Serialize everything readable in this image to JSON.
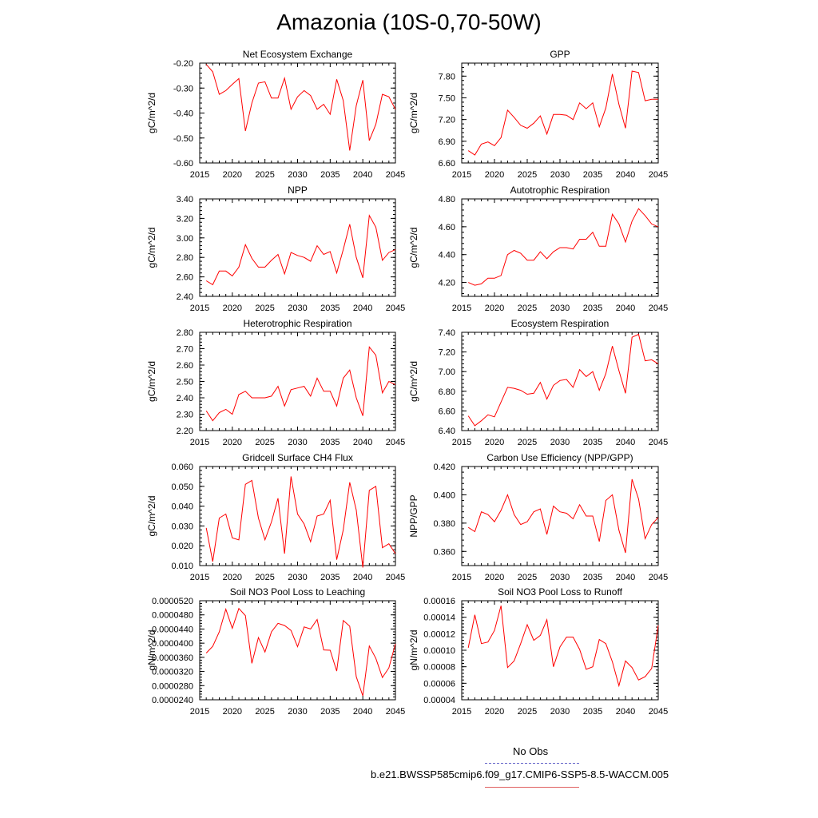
{
  "page_title": "Amazonia (10S-0,70-50W)",
  "legend": {
    "obs_label": "No Obs",
    "obs_color": "#6464c8",
    "model_label": "b.e21.BWSSP585cmip6.f09_g17.CMIP6-SSP5-8.5-WACCM.005",
    "model_color": "#e06060"
  },
  "chart_data": [
    {
      "type": "line",
      "title": "Net Ecosystem Exchange",
      "xlabel": "",
      "ylabel": "gC/m^2/d",
      "xlim": [
        2015,
        2045
      ],
      "ylim": [
        -0.6,
        -0.2
      ],
      "xticks": [
        2015,
        2020,
        2025,
        2030,
        2035,
        2040,
        2045
      ],
      "yticks": [
        "-0.20",
        "-0.30",
        "-0.40",
        "-0.50",
        "-0.60"
      ],
      "series": [
        {
          "color": "#ff0000",
          "x": [
            2016,
            2017,
            2018,
            2019,
            2020,
            2021,
            2022,
            2023,
            2024,
            2025,
            2026,
            2027,
            2028,
            2029,
            2030,
            2031,
            2032,
            2033,
            2034,
            2035,
            2036,
            2037,
            2038,
            2039,
            2040,
            2041,
            2042,
            2043,
            2044,
            2045
          ],
          "values": [
            -0.205,
            -0.235,
            -0.325,
            -0.31,
            -0.285,
            -0.262,
            -0.472,
            -0.36,
            -0.28,
            -0.275,
            -0.34,
            -0.34,
            -0.26,
            -0.385,
            -0.335,
            -0.31,
            -0.33,
            -0.385,
            -0.365,
            -0.405,
            -0.265,
            -0.35,
            -0.55,
            -0.37,
            -0.268,
            -0.51,
            -0.445,
            -0.325,
            -0.335,
            -0.385
          ]
        }
      ]
    },
    {
      "type": "line",
      "title": "GPP",
      "xlabel": "",
      "ylabel": "gC/m^2/d",
      "xlim": [
        2015,
        2045
      ],
      "ylim": [
        6.6,
        7.98
      ],
      "xticks": [
        2015,
        2020,
        2025,
        2030,
        2035,
        2040,
        2045
      ],
      "yticks": [
        "7.80",
        "7.50",
        "7.20",
        "6.90",
        "6.60"
      ],
      "series": [
        {
          "color": "#ff0000",
          "x": [
            2016,
            2017,
            2018,
            2019,
            2020,
            2021,
            2022,
            2023,
            2024,
            2025,
            2026,
            2027,
            2028,
            2029,
            2030,
            2031,
            2032,
            2033,
            2034,
            2035,
            2036,
            2037,
            2038,
            2039,
            2040,
            2041,
            2042,
            2043,
            2044,
            2045
          ],
          "values": [
            6.77,
            6.71,
            6.86,
            6.89,
            6.84,
            6.95,
            7.33,
            7.23,
            7.12,
            7.08,
            7.15,
            7.25,
            7.0,
            7.27,
            7.27,
            7.26,
            7.2,
            7.43,
            7.35,
            7.43,
            7.1,
            7.36,
            7.83,
            7.41,
            7.08,
            7.87,
            7.85,
            7.46,
            7.48,
            7.48
          ]
        }
      ]
    },
    {
      "type": "line",
      "title": "NPP",
      "xlabel": "",
      "ylabel": "gC/m^2/d",
      "xlim": [
        2015,
        2045
      ],
      "ylim": [
        2.4,
        3.4
      ],
      "xticks": [
        2015,
        2020,
        2025,
        2030,
        2035,
        2040,
        2045
      ],
      "yticks": [
        "3.40",
        "3.20",
        "3.00",
        "2.80",
        "2.60",
        "2.40"
      ],
      "series": [
        {
          "color": "#ff0000",
          "x": [
            2016,
            2017,
            2018,
            2019,
            2020,
            2021,
            2022,
            2023,
            2024,
            2025,
            2026,
            2027,
            2028,
            2029,
            2030,
            2031,
            2032,
            2033,
            2034,
            2035,
            2036,
            2037,
            2038,
            2039,
            2040,
            2041,
            2042,
            2043,
            2044,
            2045
          ],
          "values": [
            2.56,
            2.52,
            2.66,
            2.66,
            2.61,
            2.7,
            2.93,
            2.79,
            2.7,
            2.7,
            2.77,
            2.83,
            2.63,
            2.85,
            2.82,
            2.8,
            2.76,
            2.92,
            2.83,
            2.86,
            2.64,
            2.88,
            3.14,
            2.8,
            2.59,
            3.23,
            3.11,
            2.77,
            2.85,
            2.88
          ]
        }
      ]
    },
    {
      "type": "line",
      "title": "Autotrophic Respiration",
      "xlabel": "",
      "ylabel": "gC/m^2/d",
      "xlim": [
        2015,
        2045
      ],
      "ylim": [
        4.1,
        4.8
      ],
      "xticks": [
        2015,
        2020,
        2025,
        2030,
        2035,
        2040,
        2045
      ],
      "yticks": [
        "4.80",
        "4.60",
        "4.40",
        "4.20"
      ],
      "series": [
        {
          "color": "#ff0000",
          "x": [
            2016,
            2017,
            2018,
            2019,
            2020,
            2021,
            2022,
            2023,
            2024,
            2025,
            2026,
            2027,
            2028,
            2029,
            2030,
            2031,
            2032,
            2033,
            2034,
            2035,
            2036,
            2037,
            2038,
            2039,
            2040,
            2041,
            2042,
            2043,
            2044,
            2045
          ],
          "values": [
            4.2,
            4.18,
            4.19,
            4.23,
            4.23,
            4.25,
            4.4,
            4.43,
            4.41,
            4.36,
            4.36,
            4.42,
            4.37,
            4.42,
            4.45,
            4.45,
            4.44,
            4.51,
            4.51,
            4.56,
            4.46,
            4.46,
            4.69,
            4.62,
            4.49,
            4.64,
            4.73,
            4.68,
            4.62,
            4.6
          ]
        }
      ]
    },
    {
      "type": "line",
      "title": "Heterotrophic Respiration",
      "xlabel": "",
      "ylabel": "gC/m^2/d",
      "xlim": [
        2015,
        2045
      ],
      "ylim": [
        2.2,
        2.8
      ],
      "xticks": [
        2015,
        2020,
        2025,
        2030,
        2035,
        2040,
        2045
      ],
      "yticks": [
        "2.80",
        "2.70",
        "2.60",
        "2.50",
        "2.40",
        "2.30",
        "2.20"
      ],
      "series": [
        {
          "color": "#ff0000",
          "x": [
            2016,
            2017,
            2018,
            2019,
            2020,
            2021,
            2022,
            2023,
            2024,
            2025,
            2026,
            2027,
            2028,
            2029,
            2030,
            2031,
            2032,
            2033,
            2034,
            2035,
            2036,
            2037,
            2038,
            2039,
            2040,
            2041,
            2042,
            2043,
            2044,
            2045
          ],
          "values": [
            2.32,
            2.26,
            2.31,
            2.33,
            2.3,
            2.42,
            2.44,
            2.4,
            2.4,
            2.4,
            2.41,
            2.47,
            2.35,
            2.45,
            2.46,
            2.47,
            2.41,
            2.52,
            2.44,
            2.44,
            2.35,
            2.52,
            2.57,
            2.4,
            2.29,
            2.71,
            2.66,
            2.43,
            2.5,
            2.48
          ]
        }
      ]
    },
    {
      "type": "line",
      "title": "Ecosystem Respiration",
      "xlabel": "",
      "ylabel": "gC/m^2/d",
      "xlim": [
        2015,
        2045
      ],
      "ylim": [
        6.4,
        7.4
      ],
      "xticks": [
        2015,
        2020,
        2025,
        2030,
        2035,
        2040,
        2045
      ],
      "yticks": [
        "7.40",
        "7.20",
        "7.00",
        "6.80",
        "6.60",
        "6.40"
      ],
      "series": [
        {
          "color": "#ff0000",
          "x": [
            2016,
            2017,
            2018,
            2019,
            2020,
            2021,
            2022,
            2023,
            2024,
            2025,
            2026,
            2027,
            2028,
            2029,
            2030,
            2031,
            2032,
            2033,
            2034,
            2035,
            2036,
            2037,
            2038,
            2039,
            2040,
            2041,
            2042,
            2043,
            2044,
            2045
          ],
          "values": [
            6.55,
            6.45,
            6.5,
            6.56,
            6.54,
            6.69,
            6.84,
            6.83,
            6.81,
            6.77,
            6.78,
            6.89,
            6.72,
            6.86,
            6.91,
            6.92,
            6.84,
            7.02,
            6.95,
            7.0,
            6.81,
            6.98,
            7.26,
            7.01,
            6.78,
            7.35,
            7.38,
            7.11,
            7.12,
            7.08
          ]
        }
      ]
    },
    {
      "type": "line",
      "title": "Gridcell Surface CH4 Flux",
      "xlabel": "",
      "ylabel": "gC/m^2/d",
      "xlim": [
        2015,
        2045
      ],
      "ylim": [
        0.01,
        0.06
      ],
      "xticks": [
        2015,
        2020,
        2025,
        2030,
        2035,
        2040,
        2045
      ],
      "yticks": [
        "0.060",
        "0.050",
        "0.040",
        "0.030",
        "0.020",
        "0.010"
      ],
      "series": [
        {
          "color": "#ff0000",
          "x": [
            2016,
            2017,
            2018,
            2019,
            2020,
            2021,
            2022,
            2023,
            2024,
            2025,
            2026,
            2027,
            2028,
            2029,
            2030,
            2031,
            2032,
            2033,
            2034,
            2035,
            2036,
            2037,
            2038,
            2039,
            2040,
            2041,
            2042,
            2043,
            2044,
            2045
          ],
          "values": [
            0.029,
            0.012,
            0.034,
            0.036,
            0.024,
            0.023,
            0.051,
            0.053,
            0.034,
            0.023,
            0.032,
            0.044,
            0.016,
            0.055,
            0.036,
            0.031,
            0.022,
            0.035,
            0.036,
            0.043,
            0.013,
            0.028,
            0.052,
            0.038,
            0.009,
            0.048,
            0.05,
            0.019,
            0.021,
            0.016
          ]
        }
      ]
    },
    {
      "type": "line",
      "title": "Carbon Use Efficiency (NPP/GPP)",
      "xlabel": "",
      "ylabel": "NPP/GPP",
      "xlim": [
        2015,
        2045
      ],
      "ylim": [
        0.35,
        0.42
      ],
      "xticks": [
        2015,
        2020,
        2025,
        2030,
        2035,
        2040,
        2045
      ],
      "yticks": [
        "0.420",
        "0.400",
        "0.380",
        "0.360"
      ],
      "series": [
        {
          "color": "#ff0000",
          "x": [
            2016,
            2017,
            2018,
            2019,
            2020,
            2021,
            2022,
            2023,
            2024,
            2025,
            2026,
            2027,
            2028,
            2029,
            2030,
            2031,
            2032,
            2033,
            2034,
            2035,
            2036,
            2037,
            2038,
            2039,
            2040,
            2041,
            2042,
            2043,
            2044,
            2045
          ],
          "values": [
            0.377,
            0.374,
            0.388,
            0.386,
            0.381,
            0.389,
            0.4,
            0.386,
            0.379,
            0.381,
            0.388,
            0.39,
            0.372,
            0.392,
            0.388,
            0.387,
            0.383,
            0.393,
            0.385,
            0.385,
            0.367,
            0.396,
            0.4,
            0.375,
            0.359,
            0.411,
            0.397,
            0.369,
            0.379,
            0.384
          ]
        }
      ]
    },
    {
      "type": "line",
      "title": "Soil NO3 Pool Loss to Leaching",
      "xlabel": "",
      "ylabel": "gN/m^2/d",
      "xlim": [
        2015,
        2045
      ],
      "ylim": [
        2.4e-05,
        5.2e-05
      ],
      "xticks": [
        2015,
        2020,
        2025,
        2030,
        2035,
        2040,
        2045
      ],
      "yticks": [
        "0.0000520",
        "0.0000480",
        "0.0000440",
        "0.0000400",
        "0.0000360",
        "0.0000320",
        "0.0000280",
        "0.0000240"
      ],
      "series": [
        {
          "color": "#ff0000",
          "x": [
            2016,
            2017,
            2018,
            2019,
            2020,
            2021,
            2022,
            2023,
            2024,
            2025,
            2026,
            2027,
            2028,
            2029,
            2030,
            2031,
            2032,
            2033,
            2034,
            2035,
            2036,
            2037,
            2038,
            2039,
            2040,
            2041,
            2042,
            2043,
            2044,
            2045
          ],
          "values": [
            3.72e-05,
            3.91e-05,
            4.32e-05,
            4.96e-05,
            4.42e-05,
            4.98e-05,
            4.78e-05,
            3.43e-05,
            4.16e-05,
            3.75e-05,
            4.32e-05,
            4.56e-05,
            4.5e-05,
            4.36e-05,
            3.9e-05,
            4.46e-05,
            4.4e-05,
            4.67e-05,
            3.81e-05,
            3.8e-05,
            3.21e-05,
            4.64e-05,
            4.48e-05,
            3.05e-05,
            2.51e-05,
            3.92e-05,
            3.57e-05,
            3.03e-05,
            3.3e-05,
            3.98e-05
          ]
        }
      ]
    },
    {
      "type": "line",
      "title": "Soil NO3 Pool Loss to Runoff",
      "xlabel": "",
      "ylabel": "gN/m^2/d",
      "xlim": [
        2015,
        2045
      ],
      "ylim": [
        4e-05,
        0.00016
      ],
      "xticks": [
        2015,
        2020,
        2025,
        2030,
        2035,
        2040,
        2045
      ],
      "yticks": [
        "0.00016",
        "0.00014",
        "0.00012",
        "0.00010",
        "0.00008",
        "0.00006",
        "0.00004"
      ],
      "series": [
        {
          "color": "#ff0000",
          "x": [
            2016,
            2017,
            2018,
            2019,
            2020,
            2021,
            2022,
            2023,
            2024,
            2025,
            2026,
            2027,
            2028,
            2029,
            2030,
            2031,
            2032,
            2033,
            2034,
            2035,
            2036,
            2037,
            2038,
            2039,
            2040,
            2041,
            2042,
            2043,
            2044,
            2045
          ],
          "values": [
            0.000103,
            0.000143,
            0.000108,
            0.00011,
            0.000124,
            0.000154,
            7.9e-05,
            8.7e-05,
            0.000108,
            0.000131,
            0.000112,
            0.000118,
            0.000137,
            8e-05,
            0.000104,
            0.000116,
            0.000116,
            0.000101,
            7.7e-05,
            8e-05,
            0.000113,
            0.000108,
            8.6e-05,
            5.7e-05,
            8.7e-05,
            7.9e-05,
            6.4e-05,
            6.8e-05,
            7.8e-05,
            0.00013
          ]
        }
      ]
    }
  ]
}
